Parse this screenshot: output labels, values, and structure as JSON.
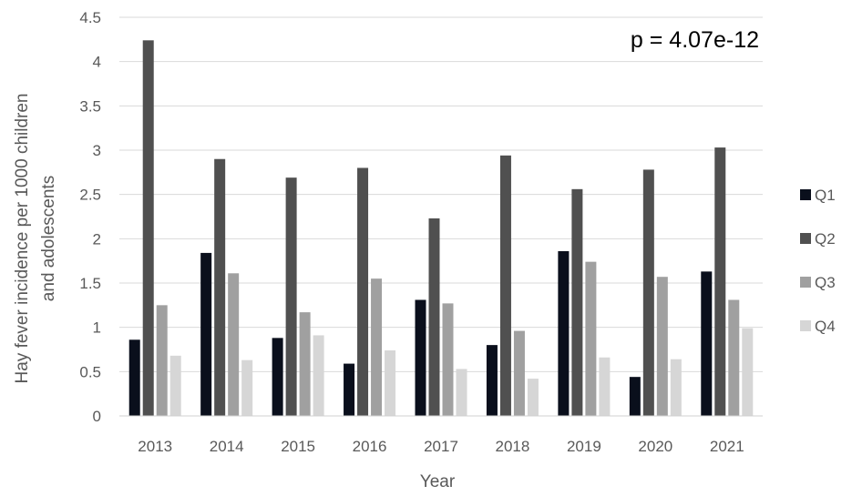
{
  "chart_data": {
    "type": "bar",
    "title": "",
    "annotation": "p = 4.07e-12",
    "xlabel": "Year",
    "ylabel_lines": [
      "Hay fever incidence per 1000 children",
      "and adolescents"
    ],
    "ylim": [
      0,
      4.5
    ],
    "yticks": [
      "0",
      "0.5",
      "1",
      "1.5",
      "2",
      "2.5",
      "3",
      "3.5",
      "4",
      "4.5"
    ],
    "grid": true,
    "legend_position": "right",
    "categories": [
      "2013",
      "2014",
      "2015",
      "2016",
      "2017",
      "2018",
      "2019",
      "2020",
      "2021"
    ],
    "series": [
      {
        "name": "Q1",
        "color": "#0a0f1c",
        "values": [
          0.86,
          1.84,
          0.88,
          0.59,
          1.31,
          0.8,
          1.86,
          0.44,
          1.63
        ]
      },
      {
        "name": "Q2",
        "color": "#505050",
        "values": [
          4.24,
          2.9,
          2.69,
          2.8,
          2.23,
          2.94,
          2.56,
          2.78,
          3.03
        ]
      },
      {
        "name": "Q3",
        "color": "#a0a0a0",
        "values": [
          1.25,
          1.61,
          1.17,
          1.55,
          1.27,
          0.96,
          1.74,
          1.57,
          1.31
        ]
      },
      {
        "name": "Q4",
        "color": "#d6d6d6",
        "values": [
          0.68,
          0.63,
          0.91,
          0.74,
          0.53,
          0.42,
          0.66,
          0.64,
          0.99
        ]
      }
    ]
  }
}
